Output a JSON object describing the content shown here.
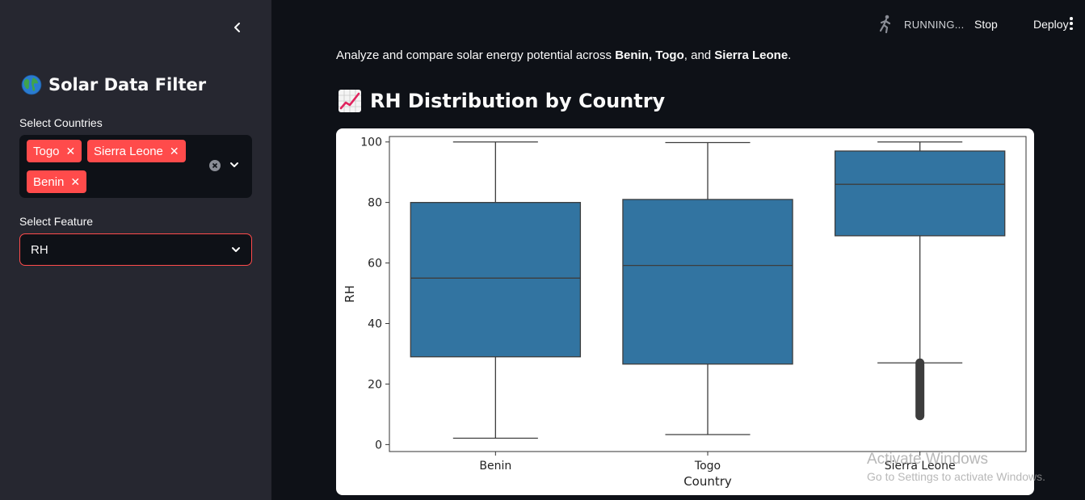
{
  "sidebar": {
    "title": "Solar Data Filter",
    "countries_label": "Select Countries",
    "selected_countries": [
      "Togo",
      "Sierra Leone",
      "Benin"
    ],
    "feature_label": "Select Feature",
    "feature_value": "RH"
  },
  "topbar": {
    "status": "RUNNING...",
    "stop_label": "Stop",
    "deploy_label": "Deploy"
  },
  "main": {
    "intro_prefix": "Analyze and compare solar energy potential across ",
    "intro_c1": "Benin",
    "intro_sep1": ", ",
    "intro_c2": "Togo",
    "intro_sep2": ", and ",
    "intro_c3": "Sierra Leone",
    "intro_suffix": ".",
    "heading": "RH Distribution by Country"
  },
  "chart_data": {
    "type": "box",
    "title": "",
    "xlabel": "Country",
    "ylabel": "RH",
    "ylim": [
      -2.3,
      101.8
    ],
    "yticks": [
      0,
      20,
      40,
      60,
      80,
      100
    ],
    "categories": [
      "Benin",
      "Togo",
      "Sierra Leone"
    ],
    "boxes": [
      {
        "name": "Benin",
        "whisker_low": 2.1,
        "q1": 29,
        "median": 55,
        "q3": 80,
        "whisker_high": 100,
        "outlier_range": null
      },
      {
        "name": "Togo",
        "whisker_low": 3.3,
        "q1": 26.6,
        "median": 59.2,
        "q3": 81,
        "whisker_high": 99.8,
        "outlier_range": null
      },
      {
        "name": "Sierra Leone",
        "whisker_low": 27,
        "q1": 69,
        "median": 86,
        "q3": 97,
        "whisker_high": 100,
        "outlier_range": [
          9.5,
          27
        ]
      }
    ],
    "box_color": "#3274a1",
    "line_color": "#3d3d3d",
    "grid": false
  },
  "watermark": {
    "line1": "Activate Windows",
    "line2": "Go to Settings to activate Windows."
  }
}
